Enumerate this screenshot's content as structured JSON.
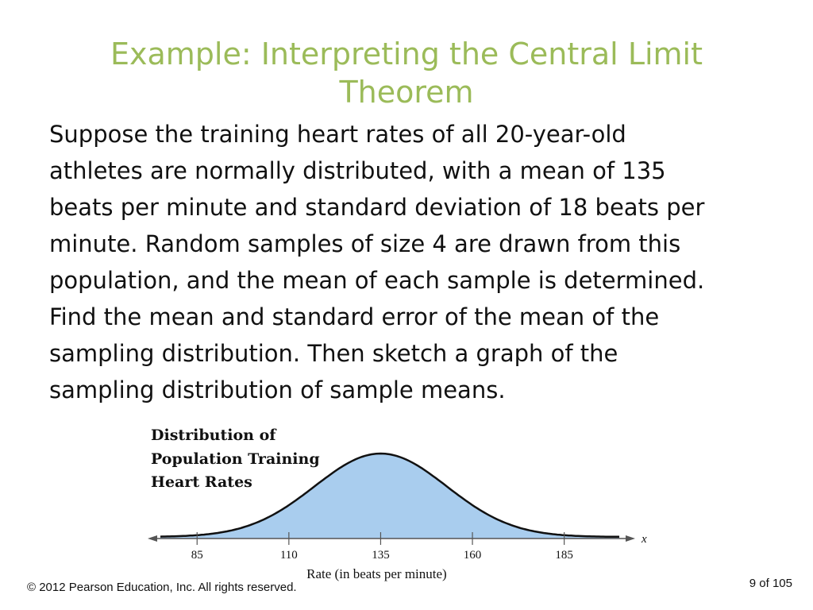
{
  "slide": {
    "title_lines": [
      "Example: Interpreting the Central Limit",
      "Theorem"
    ],
    "body_lines": [
      "Suppose the training heart rates of all 20-year-old",
      "athletes are normally distributed, with a mean of 135",
      "beats per minute and standard deviation of 18 beats per",
      "minute. Random samples of size 4 are drawn from this",
      "population, and the mean of each sample is determined.",
      "Find the mean and standard error of the mean of the",
      "sampling distribution. Then sketch a graph of the",
      "sampling distribution of sample means."
    ],
    "title_color": "#9bbb59"
  },
  "chart_data": {
    "type": "area",
    "title_lines": [
      "Distribution of",
      "Population Training",
      "Heart Rates"
    ],
    "xlabel": "Rate (in beats per minute)",
    "axis_variable": "x",
    "ticks": [
      85,
      110,
      135,
      160,
      185
    ],
    "tick_labels": [
      "85",
      "110",
      "135",
      "160",
      "185"
    ],
    "distribution": "normal",
    "mean": 135,
    "std_dev": 18,
    "xlim": [
      75,
      200
    ],
    "fill_color": "#a9cdee",
    "line_color": "#111111",
    "grid": false,
    "legend": "none"
  },
  "footer": {
    "copyright": "© 2012 Pearson Education, Inc. All rights reserved.",
    "page": "9 of 105"
  }
}
